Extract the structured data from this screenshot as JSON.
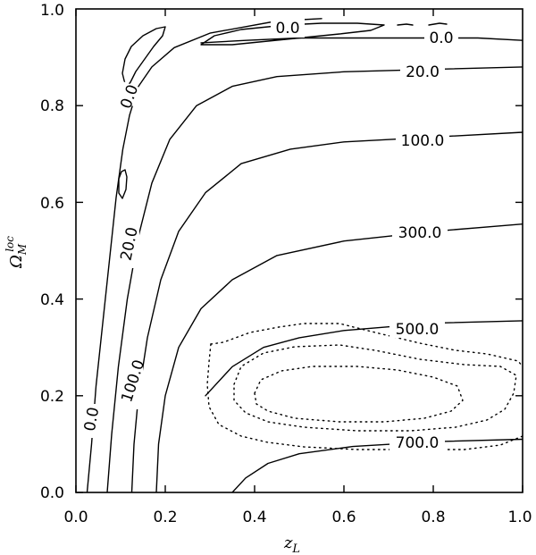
{
  "chart_data": {
    "type": "contour",
    "xlabel_base": "z",
    "xlabel_sub": "L",
    "ylabel_base": "Ω",
    "ylabel_sub": "M",
    "ylabel_sup": "loc",
    "xlim": [
      0.0,
      1.0
    ],
    "ylim": [
      0.0,
      1.0
    ],
    "xticks": [
      "0.0",
      "0.2",
      "0.4",
      "0.6",
      "0.8",
      "1.0"
    ],
    "yticks": [
      "0.0",
      "0.2",
      "0.4",
      "0.6",
      "0.8",
      "1.0"
    ],
    "levels": [
      {
        "label": "0.0",
        "points": [
          [
            0.025,
            0.0
          ],
          [
            0.035,
            0.1
          ],
          [
            0.045,
            0.22
          ],
          [
            0.06,
            0.35
          ],
          [
            0.075,
            0.48
          ],
          [
            0.09,
            0.61
          ],
          [
            0.105,
            0.71
          ],
          [
            0.12,
            0.78
          ],
          [
            0.14,
            0.84
          ],
          [
            0.17,
            0.88
          ],
          [
            0.22,
            0.92
          ],
          [
            0.3,
            0.95
          ],
          [
            0.45,
            0.975
          ],
          [
            0.55,
            0.98
          ]
        ]
      },
      {
        "label": "0.0",
        "points": [
          [
            0.28,
            0.93
          ],
          [
            0.38,
            0.935
          ],
          [
            0.5,
            0.94
          ],
          [
            0.6,
            0.94
          ],
          [
            0.75,
            0.94
          ],
          [
            0.9,
            0.94
          ],
          [
            1.0,
            0.935
          ]
        ]
      },
      {
        "label": "20.0",
        "points": [
          [
            0.07,
            0.0
          ],
          [
            0.08,
            0.12
          ],
          [
            0.095,
            0.26
          ],
          [
            0.115,
            0.4
          ],
          [
            0.14,
            0.53
          ],
          [
            0.17,
            0.64
          ],
          [
            0.21,
            0.73
          ],
          [
            0.27,
            0.8
          ],
          [
            0.35,
            0.84
          ],
          [
            0.45,
            0.86
          ],
          [
            0.6,
            0.87
          ],
          [
            0.8,
            0.875
          ],
          [
            1.0,
            0.88
          ]
        ]
      },
      {
        "label": "100.0",
        "points": [
          [
            0.125,
            0.0
          ],
          [
            0.13,
            0.1
          ],
          [
            0.14,
            0.2
          ],
          [
            0.16,
            0.32
          ],
          [
            0.19,
            0.44
          ],
          [
            0.23,
            0.54
          ],
          [
            0.29,
            0.62
          ],
          [
            0.37,
            0.68
          ],
          [
            0.48,
            0.71
          ],
          [
            0.6,
            0.725
          ],
          [
            0.8,
            0.735
          ],
          [
            1.0,
            0.745
          ]
        ]
      },
      {
        "label": "300.0",
        "points": [
          [
            0.18,
            0.0
          ],
          [
            0.185,
            0.1
          ],
          [
            0.2,
            0.2
          ],
          [
            0.23,
            0.3
          ],
          [
            0.28,
            0.38
          ],
          [
            0.35,
            0.44
          ],
          [
            0.45,
            0.49
          ],
          [
            0.6,
            0.52
          ],
          [
            0.8,
            0.54
          ],
          [
            1.0,
            0.555
          ]
        ]
      },
      {
        "label": "500.0",
        "points": [
          [
            0.29,
            0.2
          ],
          [
            0.35,
            0.26
          ],
          [
            0.42,
            0.3
          ],
          [
            0.5,
            0.32
          ],
          [
            0.6,
            0.335
          ],
          [
            0.8,
            0.35
          ],
          [
            1.0,
            0.355
          ]
        ]
      },
      {
        "label": "700.0",
        "points": [
          [
            0.35,
            0.0
          ],
          [
            0.38,
            0.03
          ],
          [
            0.43,
            0.06
          ],
          [
            0.5,
            0.08
          ],
          [
            0.62,
            0.095
          ],
          [
            0.8,
            0.105
          ],
          [
            1.0,
            0.11
          ]
        ]
      }
    ]
  }
}
